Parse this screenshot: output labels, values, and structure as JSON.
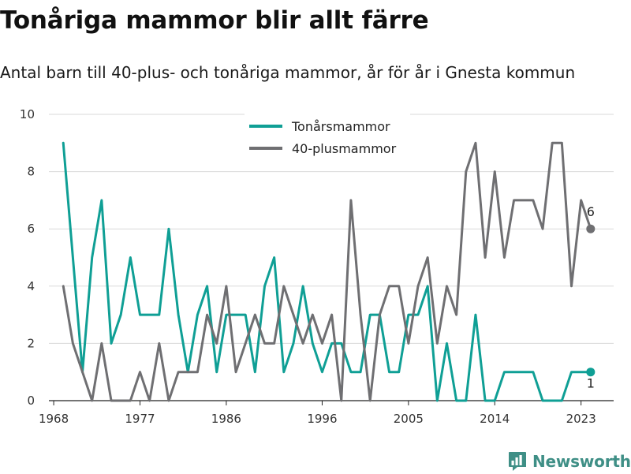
{
  "title": "Tonåriga mammor blir allt färre",
  "subtitle": "Antal barn till 40-plus- och tonåriga mammor, år för år i Gnesta kommun",
  "brand": "Newsworthy",
  "chart_data": {
    "type": "line",
    "title": "Tonåriga mammor blir allt färre",
    "subtitle": "Antal barn till 40-plus- och tonåriga mammor, år för år i Gnesta kommun",
    "xlabel": "",
    "ylabel": "",
    "x": [
      1969,
      1970,
      1971,
      1972,
      1973,
      1974,
      1975,
      1976,
      1977,
      1978,
      1979,
      1980,
      1981,
      1982,
      1983,
      1984,
      1985,
      1986,
      1987,
      1988,
      1989,
      1990,
      1991,
      1992,
      1993,
      1994,
      1995,
      1996,
      1997,
      1998,
      1999,
      2000,
      2001,
      2002,
      2003,
      2004,
      2005,
      2006,
      2007,
      2008,
      2009,
      2010,
      2011,
      2012,
      2013,
      2014,
      2015,
      2016,
      2017,
      2018,
      2019,
      2020,
      2021,
      2022,
      2023,
      2024
    ],
    "series": [
      {
        "name": "Tonårsmammor",
        "color": "#0f9f95",
        "values": [
          9,
          5,
          1,
          5,
          7,
          2,
          3,
          5,
          3,
          3,
          3,
          6,
          3,
          1,
          3,
          4,
          1,
          3,
          3,
          3,
          1,
          4,
          5,
          1,
          2,
          4,
          2,
          1,
          2,
          2,
          1,
          1,
          3,
          3,
          1,
          1,
          3,
          3,
          4,
          0,
          2,
          0,
          0,
          3,
          0,
          0,
          1,
          1,
          1,
          1,
          0,
          0,
          0,
          1,
          1,
          1
        ],
        "end_label": "1"
      },
      {
        "name": "40-plusmammor",
        "color": "#6f6f72",
        "values": [
          4,
          2,
          1,
          0,
          2,
          0,
          0,
          0,
          1,
          0,
          2,
          0,
          1,
          1,
          1,
          3,
          2,
          4,
          1,
          2,
          3,
          2,
          2,
          4,
          3,
          2,
          3,
          2,
          3,
          0,
          7,
          3,
          0,
          3,
          4,
          4,
          2,
          4,
          5,
          2,
          4,
          3,
          8,
          9,
          5,
          8,
          5,
          7,
          7,
          7,
          6,
          9,
          9,
          4,
          7,
          6
        ],
        "end_label": "6"
      }
    ],
    "x_ticks": [
      1968,
      1977,
      1986,
      1996,
      2005,
      2014,
      2023
    ],
    "y_ticks": [
      0,
      2,
      4,
      6,
      8,
      10
    ],
    "xlim": [
      1967.5,
      2026.4
    ],
    "ylim": [
      0,
      10
    ],
    "grid": true,
    "legend": "top-center"
  }
}
